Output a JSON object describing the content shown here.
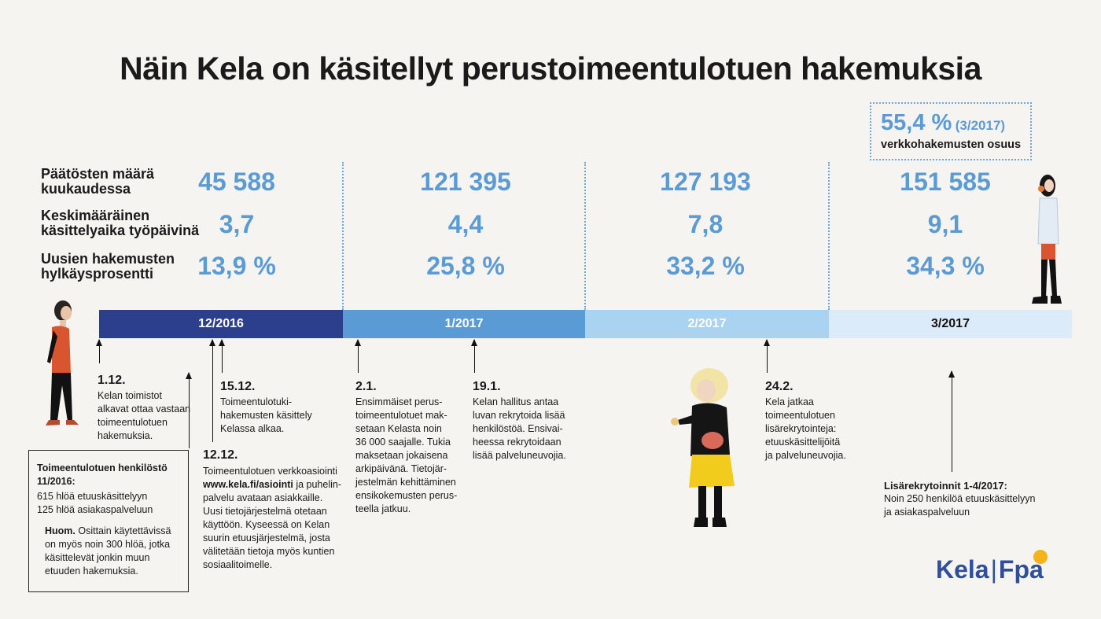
{
  "title": "Näin Kela on käsitellyt perustoimeentulotuen hakemuksia",
  "share": {
    "value": "55,4 %",
    "period": "(3/2017)",
    "label": "verkkohakemusten osuus"
  },
  "rows": [
    {
      "label_line1": "Päätösten määrä",
      "label_line2": "kuukaudessa",
      "values": [
        "45 588",
        "121 395",
        "127 193",
        "151 585"
      ]
    },
    {
      "label_line1": "Keskimääräinen",
      "label_line2": "käsittelyaika työpäivinä",
      "values": [
        "3,7",
        "4,4",
        "7,8",
        "9,1"
      ]
    },
    {
      "label_line1": "Uusien hakemusten",
      "label_line2": "hylkäysprosentti",
      "values": [
        "13,9 %",
        "25,8 %",
        "33,2 %",
        "34,3 %"
      ]
    }
  ],
  "timeline": [
    {
      "label": "12/2016",
      "color": "#2b3f8c",
      "text_color": "#ffffff"
    },
    {
      "label": "1/2017",
      "color": "#5b9bd5",
      "text_color": "#ffffff"
    },
    {
      "label": "2/2017",
      "color": "#a9d3f1",
      "text_color": "#ffffff"
    },
    {
      "label": "3/2017",
      "color": "#dcebf9",
      "text_color": "#111111"
    }
  ],
  "events": {
    "e1": {
      "date": "1.12.",
      "lines": [
        "Kelan toimistot",
        "alkavat ottaa vastaan",
        "toimeentulotuen",
        "hakemuksia."
      ]
    },
    "e2": {
      "date": "15.12.",
      "lines": [
        "Toimeentulotuki-",
        "hakemusten käsittely",
        "Kelassa alkaa."
      ]
    },
    "e3": {
      "date": "12.12.",
      "line1": "Toimeentulotuen verkkoasiointi",
      "link": "www.kela.fi/asiointi",
      "link_suffix": " ja puhelin-",
      "lines": [
        "palvelu avataan asiakkaille.",
        "Uusi tietojärjestelmä otetaan",
        "käyttöön. Kyseessä on Kelan",
        "suurin etuusjärjestelmä, josta",
        "välitetään tietoja myös kuntien",
        "sosiaalitoimelle."
      ]
    },
    "e4": {
      "date": "2.1.",
      "lines": [
        "Ensimmäiset perus-",
        "toimeentulotuet mak-",
        "setaan Kelasta noin",
        "36 000 saajalle. Tukia",
        "maksetaan jokaisena",
        "arkipäivänä. Tietojär-",
        "jestelmän kehittäminen",
        "ensikokemusten perus-",
        "teella jatkuu."
      ]
    },
    "e5": {
      "date": "19.1.",
      "lines": [
        "Kelan hallitus antaa",
        "luvan rekrytoida lisää",
        "henkilöstöä. Ensivai-",
        "heessa rekrytoidaan",
        "lisää palveluneuvojia."
      ]
    },
    "e6": {
      "date": "24.2.",
      "lines": [
        "Kela jatkaa",
        "toimeentulotuen",
        "lisärekrytointeja:",
        "etuuskäsittelijöitä",
        "ja palveluneuvojia."
      ]
    },
    "e7": {
      "title": "Lisärekrytoinnit 1-4/2017:",
      "lines": [
        "Noin 250 henkilöä etuuskäsittelyyn",
        "ja asiakaspalveluun"
      ]
    }
  },
  "staff_box": {
    "title_line1": "Toimeentulotuen henkilöstö",
    "title_line2": "11/2016:",
    "lines": [
      "615 hlöä etuuskäsittelyyn",
      "125 hlöä asiakaspalveluun"
    ],
    "note_bold": "Huom.",
    "note_first": " Osittain käytettävissä",
    "note_lines": [
      "on myös noin 300 hlöä, jotka",
      "käsittelevät jonkin muun",
      "etuuden hakemuksia."
    ]
  },
  "logo": {
    "left": "Kela",
    "right": "Fpa"
  }
}
